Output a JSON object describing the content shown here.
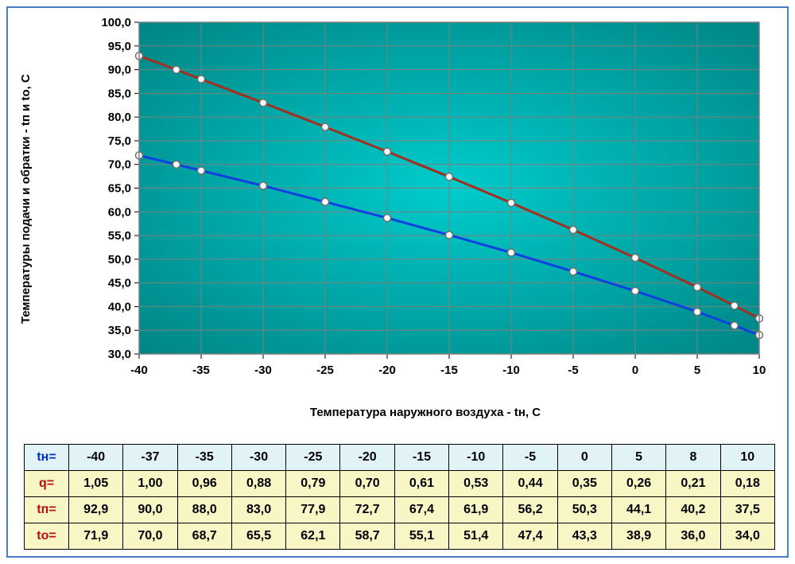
{
  "chart": {
    "type": "line",
    "ylabel": "Температуры подачи и обратки - tп и to, C",
    "xlabel": "Температура наружного воздуха - tн, C",
    "background_gradient": {
      "center": "#00cccc",
      "edge": "#008080"
    },
    "plot_bg_fallback": "#00a6a6",
    "grid_color": "#7f7f7f",
    "tick_font_size": 15,
    "tick_font_weight": "bold",
    "tick_color": "#000000",
    "label_fontsize": 15,
    "xlim": [
      -40,
      10
    ],
    "ylim": [
      30,
      100
    ],
    "xtick_step": 5,
    "ytick_step": 5,
    "xticks": [
      -40,
      -35,
      -30,
      -25,
      -20,
      -15,
      -10,
      -5,
      0,
      5,
      10
    ],
    "yticks": [
      30.0,
      35.0,
      40.0,
      45.0,
      50.0,
      55.0,
      60.0,
      65.0,
      70.0,
      75.0,
      80.0,
      85.0,
      90.0,
      95.0,
      100.0
    ],
    "ytick_labels": [
      "30,0",
      "35,0",
      "40,0",
      "45,0",
      "50,0",
      "55,0",
      "60,0",
      "65,0",
      "70,0",
      "75,0",
      "80,0",
      "85,0",
      "90,0",
      "95,0",
      "100,0"
    ],
    "x_values": [
      -40,
      -37,
      -35,
      -30,
      -25,
      -20,
      -15,
      -10,
      -5,
      0,
      5,
      8,
      10
    ],
    "series": [
      {
        "name": "tп",
        "y": [
          92.9,
          90.0,
          88.0,
          83.0,
          77.9,
          72.7,
          67.4,
          61.9,
          56.2,
          50.3,
          44.1,
          40.2,
          37.5
        ],
        "line_color": "#a03020",
        "line_width": 3,
        "marker": "circle",
        "marker_size": 9,
        "marker_fill": "#ffffff",
        "marker_stroke": "#707070",
        "marker_stroke_width": 1.5
      },
      {
        "name": "to",
        "y": [
          71.9,
          70.0,
          68.7,
          65.5,
          62.1,
          58.7,
          55.1,
          51.4,
          47.4,
          43.3,
          38.9,
          36.0,
          34.0
        ],
        "line_color": "#1040e0",
        "line_width": 3,
        "marker": "circle",
        "marker_size": 9,
        "marker_fill": "#ffffff",
        "marker_stroke": "#707070",
        "marker_stroke_width": 1.5
      }
    ]
  },
  "table": {
    "columns": [
      "-40",
      "-37",
      "-35",
      "-30",
      "-25",
      "-20",
      "-15",
      "-10",
      "-5",
      "0",
      "5",
      "8",
      "10"
    ],
    "rows": [
      {
        "label": "tн=",
        "class": "row-tn",
        "values": [
          "-40",
          "-37",
          "-35",
          "-30",
          "-25",
          "-20",
          "-15",
          "-10",
          "-5",
          "0",
          "5",
          "8",
          "10"
        ]
      },
      {
        "label": "q=",
        "class": "row-q",
        "values": [
          "1,05",
          "1,00",
          "0,96",
          "0,88",
          "0,79",
          "0,70",
          "0,61",
          "0,53",
          "0,44",
          "0,35",
          "0,26",
          "0,21",
          "0,18"
        ]
      },
      {
        "label": "tп=",
        "class": "row-tp",
        "values": [
          "92,9",
          "90,0",
          "88,0",
          "83,0",
          "77,9",
          "72,7",
          "67,4",
          "61,9",
          "56,2",
          "50,3",
          "44,1",
          "40,2",
          "37,5"
        ]
      },
      {
        "label": "tо=",
        "class": "row-to",
        "values": [
          "71,9",
          "70,0",
          "68,7",
          "65,5",
          "62,1",
          "58,7",
          "55,1",
          "51,4",
          "47,4",
          "43,3",
          "38,9",
          "36,0",
          "34,0"
        ]
      }
    ]
  }
}
